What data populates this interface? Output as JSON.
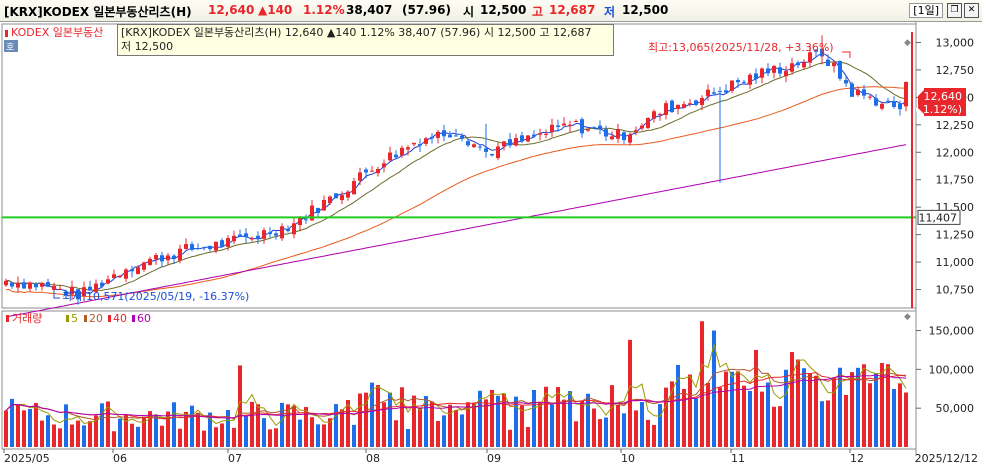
{
  "header": {
    "code": "[KRX]KODEX 일본부동산리츠(H)",
    "price": "12,640",
    "change": "▲140",
    "change_pct": "1.12%",
    "volume": "38,407",
    "volume_ratio": "(57.96)",
    "open_label": "시",
    "open": "12,500",
    "high_label": "고",
    "high": "12,687",
    "low_label": "저",
    "low": "12,500",
    "period": "[1일]"
  },
  "tooltip": {
    "line1": "[KRX]KODEX 일본부동산리츠(H) 12,640 ▲140 1.12% 38,407 (57.96) 시 12,500 고 12,687",
    "line2": "저 12,500"
  },
  "legend_price": "KODEX 일본부동산",
  "legend_volume": {
    "title": "거래량",
    "ma": [
      {
        "label": "5",
        "color": "#9a9a00"
      },
      {
        "label": "20",
        "color": "#b05a2a"
      },
      {
        "label": "40",
        "color": "#e8262b"
      },
      {
        "label": "60",
        "color": "#b000b0"
      }
    ]
  },
  "annotations": {
    "high": "최고:13,065(2025/11/28, +3.36%)",
    "low": "최저:10,571(2025/05/19, -16.37%)"
  },
  "price_axis": {
    "ticks": [
      "13,000",
      "12,750",
      "12,500",
      "12,250",
      "12,000",
      "11,750",
      "11,500",
      "11,250",
      "11,000",
      "10,750"
    ],
    "current_price": "12,640",
    "current_pct": "( 1.12%)",
    "hline_value": "11,407"
  },
  "volume_axis": {
    "ticks": [
      "150,000",
      "100,000",
      "50,000"
    ]
  },
  "x_axis": {
    "ticks": [
      "2025/05",
      "06",
      "07",
      "08",
      "09",
      "10",
      "11",
      "12"
    ],
    "last_date": "2025/12/12"
  },
  "colors": {
    "up": "#e8262b",
    "down": "#1c6fe8",
    "ma5": "#1c3fd6",
    "ma20": "#6b6b2a",
    "ma60": "#e85a1c",
    "ma120": "#b000b0",
    "hline": "#22cc22"
  },
  "chart_data": {
    "type": "candlestick",
    "price_range": [
      10600,
      13150
    ],
    "volume_range": [
      0,
      170000
    ],
    "price_start": 10830,
    "price_end": 12640,
    "high": 13065,
    "low": 10571,
    "hline": 11407,
    "volume_peaks": [
      62000,
      105000,
      162000,
      150000,
      138000,
      125000,
      102000,
      95000
    ]
  }
}
